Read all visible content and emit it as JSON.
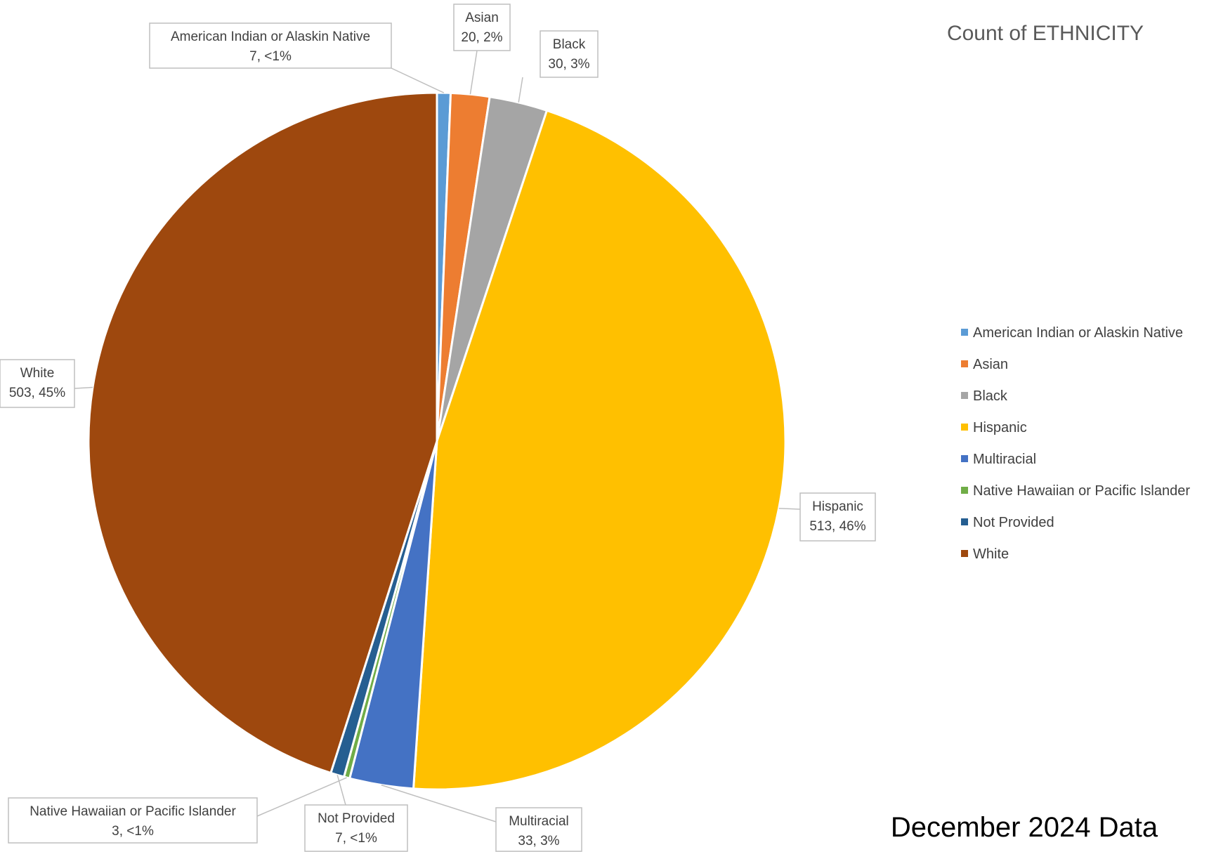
{
  "chart_data": {
    "type": "pie",
    "title": "Count of ETHNICITY",
    "footer": "December 2024 Data",
    "legend_position": "right",
    "slices": [
      {
        "label": "American Indian or Alaskin Native",
        "value": 7,
        "pct_label": "<1%",
        "color": "#5B9BD5"
      },
      {
        "label": "Asian",
        "value": 20,
        "pct_label": "2%",
        "color": "#ED7D31"
      },
      {
        "label": "Black",
        "value": 30,
        "pct_label": "3%",
        "color": "#A5A5A5"
      },
      {
        "label": "Hispanic",
        "value": 513,
        "pct_label": "46%",
        "color": "#FFC000"
      },
      {
        "label": "Multiracial",
        "value": 33,
        "pct_label": "3%",
        "color": "#4472C4"
      },
      {
        "label": "Native Hawaiian or Pacific Islander",
        "value": 3,
        "pct_label": "<1%",
        "color": "#70AD47"
      },
      {
        "label": "Not Provided",
        "value": 7,
        "pct_label": "<1%",
        "color": "#255E91"
      },
      {
        "label": "White",
        "value": 503,
        "pct_label": "45%",
        "color": "#9E480E"
      }
    ]
  }
}
